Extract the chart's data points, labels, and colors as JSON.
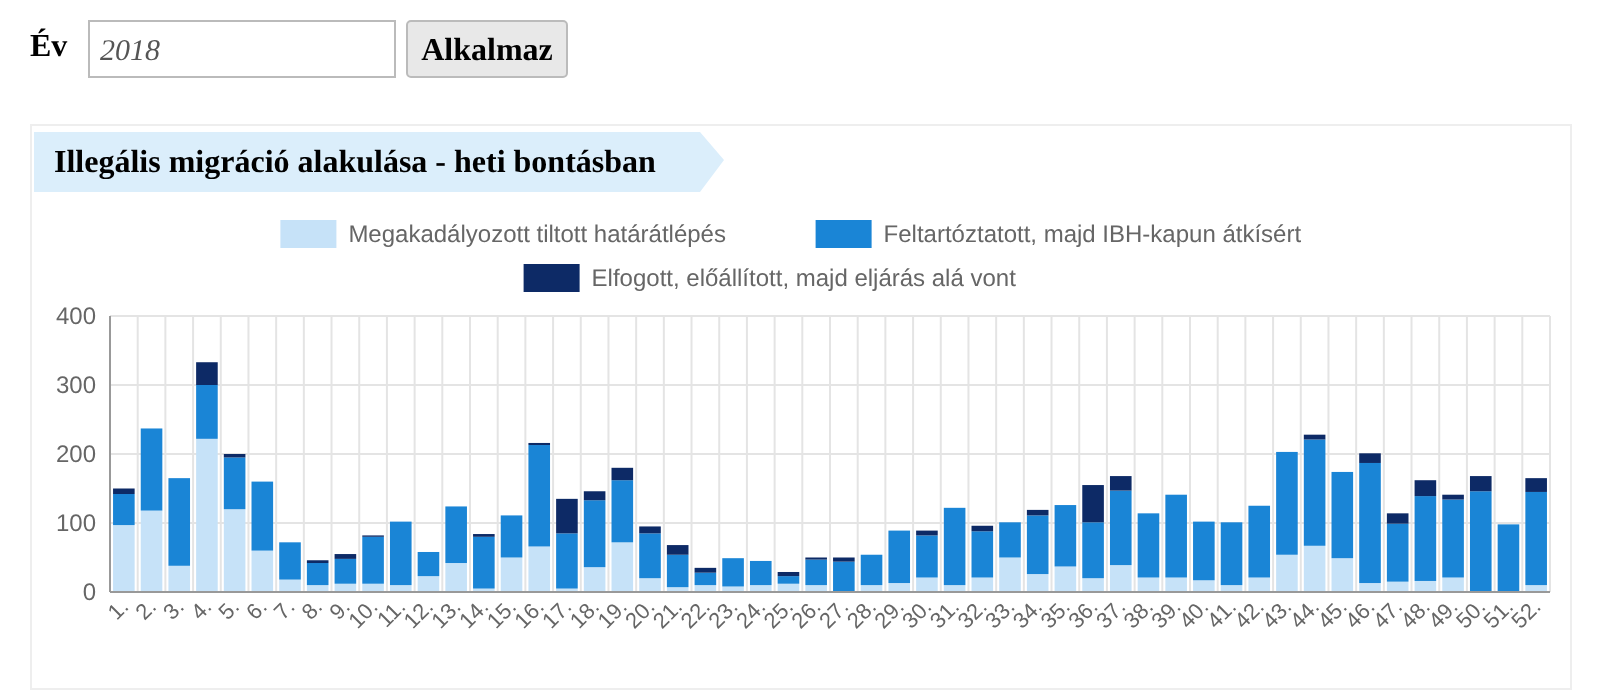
{
  "chart_data": {
    "type": "bar",
    "title": "Illegális migráció alakulása - heti bontásban",
    "annotations": [
      "Év",
      "2018",
      "Alkalmaz"
    ],
    "categories": [
      "1.",
      "2.",
      "3.",
      "4.",
      "5.",
      "6.",
      "7.",
      "8.",
      "9.",
      "10.",
      "11.",
      "12.",
      "13.",
      "14.",
      "15.",
      "16.",
      "17.",
      "18.",
      "19.",
      "20.",
      "21.",
      "22.",
      "23.",
      "24.",
      "25.",
      "26.",
      "27.",
      "28.",
      "29.",
      "30.",
      "31.",
      "32.",
      "33.",
      "34.",
      "35.",
      "36.",
      "37.",
      "38.",
      "39.",
      "40.",
      "41.",
      "42.",
      "43.",
      "44.",
      "45.",
      "46.",
      "47.",
      "48.",
      "49.",
      "50.",
      "51.",
      "52."
    ],
    "stacked": true,
    "legend": "top",
    "grid": true,
    "ylim": [
      0,
      400
    ],
    "yticks": [
      0,
      100,
      200,
      300,
      400
    ],
    "series": [
      {
        "name": "Megakadályozott tiltott határátlépés",
        "color": "#c6e2f8",
        "values": [
          97,
          118,
          38,
          222,
          120,
          60,
          18,
          10,
          12,
          12,
          10,
          23,
          42,
          5,
          50,
          66,
          5,
          36,
          72,
          20,
          7,
          10,
          8,
          10,
          12,
          10,
          null,
          10,
          13,
          21,
          10,
          21,
          50,
          26,
          37,
          20,
          39,
          21,
          21,
          17,
          10,
          21,
          54,
          67,
          49,
          13,
          15,
          16,
          21,
          null,
          null,
          10
        ]
      },
      {
        "name": "Feltartóztatott, majd IBH-kapun átkísért",
        "color": "#1a85d6",
        "values": [
          45,
          119,
          127,
          78,
          75,
          100,
          54,
          32,
          36,
          68,
          92,
          35,
          82,
          75,
          61,
          147,
          80,
          97,
          90,
          65,
          47,
          18,
          41,
          35,
          11,
          37,
          44,
          44,
          76,
          61,
          112,
          67,
          51,
          85,
          89,
          81,
          108,
          93,
          120,
          85,
          91,
          104,
          149,
          154,
          125,
          174,
          84,
          123,
          113,
          146,
          98,
          135
        ]
      },
      {
        "name": "Elfogott, előállított, majd eljárás alá vont",
        "color": "#0d2a66",
        "values": [
          8,
          0,
          0,
          33,
          5,
          0,
          0,
          4,
          7,
          2,
          0,
          0,
          0,
          4,
          0,
          3,
          50,
          13,
          18,
          10,
          14,
          7,
          0,
          0,
          6,
          3,
          6,
          0,
          0,
          7,
          0,
          8,
          0,
          8,
          0,
          54,
          21,
          0,
          0,
          0,
          0,
          0,
          0,
          7,
          0,
          14,
          15,
          23,
          7,
          22,
          0,
          20
        ]
      }
    ]
  }
}
